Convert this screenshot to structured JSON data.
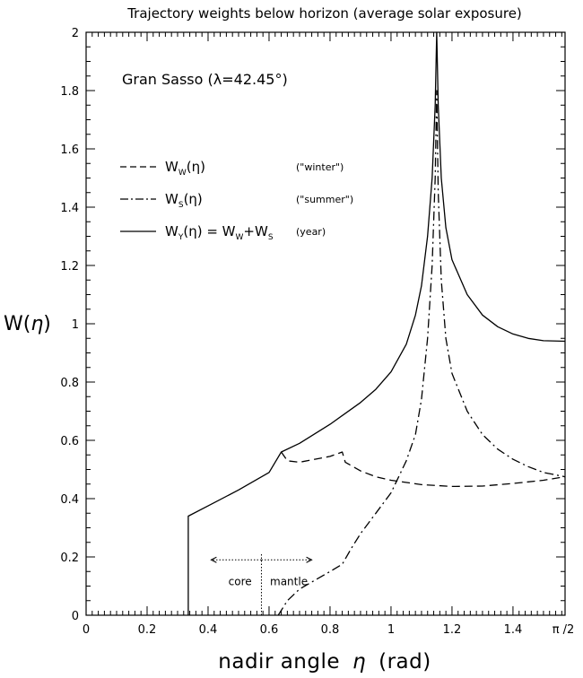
{
  "chart_data": {
    "type": "line",
    "title": "Trajectory weights below horizon (average solar exposure)",
    "xlabel_pre": "nadir angle",
    "xlabel_sym": "η",
    "xlabel_unit": "(rad)",
    "ylabel_pre": "W(",
    "ylabel_sym": "η",
    "ylabel_post": ")",
    "xlim": [
      0,
      1.5708
    ],
    "ylim": [
      0,
      2
    ],
    "grid": false,
    "legend_position": "upper-left",
    "annotation": "Gran Sasso (λ=42.45°)",
    "x_ticks": [
      {
        "value": 0,
        "label": "0"
      },
      {
        "value": 0.2,
        "label": "0.2"
      },
      {
        "value": 0.4,
        "label": "0.4"
      },
      {
        "value": 0.6,
        "label": "0.6"
      },
      {
        "value": 0.8,
        "label": "0.8"
      },
      {
        "value": 1.0,
        "label": "1"
      },
      {
        "value": 1.2,
        "label": "1.2"
      },
      {
        "value": 1.4,
        "label": "1.4"
      },
      {
        "value": 1.5708,
        "label": "π /2"
      }
    ],
    "y_ticks": [
      {
        "value": 0,
        "label": "0"
      },
      {
        "value": 0.2,
        "label": "0.2"
      },
      {
        "value": 0.4,
        "label": "0.4"
      },
      {
        "value": 0.6,
        "label": "0.6"
      },
      {
        "value": 0.8,
        "label": "0.8"
      },
      {
        "value": 1.0,
        "label": "1"
      },
      {
        "value": 1.2,
        "label": "1.2"
      },
      {
        "value": 1.4,
        "label": "1.4"
      },
      {
        "value": 1.6,
        "label": "1.6"
      },
      {
        "value": 1.8,
        "label": "1.8"
      },
      {
        "value": 2.0,
        "label": "2"
      }
    ],
    "core_mantle": {
      "boundary": 0.575,
      "core_label": "core",
      "mantle_label": "mantle"
    },
    "series": [
      {
        "name": "winter",
        "legend_main": "W",
        "legend_sub": "W",
        "legend_arg": "(η)",
        "legend_note": "(\"winter\")",
        "style": "dashed",
        "points": [
          [
            0.64,
            0.56
          ],
          [
            0.66,
            0.53
          ],
          [
            0.7,
            0.525
          ],
          [
            0.75,
            0.535
          ],
          [
            0.8,
            0.545
          ],
          [
            0.84,
            0.56
          ],
          [
            0.85,
            0.525
          ],
          [
            0.9,
            0.495
          ],
          [
            0.95,
            0.475
          ],
          [
            1.0,
            0.463
          ],
          [
            1.1,
            0.448
          ],
          [
            1.2,
            0.442
          ],
          [
            1.3,
            0.443
          ],
          [
            1.4,
            0.452
          ],
          [
            1.5,
            0.463
          ],
          [
            1.5708,
            0.475
          ]
        ]
      },
      {
        "name": "summer",
        "legend_main": "W",
        "legend_sub": "S",
        "legend_arg": "(η)",
        "legend_note": "(\"summer\")",
        "style": "dashdot",
        "points": [
          [
            0.63,
            0.0
          ],
          [
            0.66,
            0.05
          ],
          [
            0.7,
            0.09
          ],
          [
            0.75,
            0.12
          ],
          [
            0.8,
            0.15
          ],
          [
            0.84,
            0.175
          ],
          [
            0.87,
            0.23
          ],
          [
            0.9,
            0.28
          ],
          [
            0.95,
            0.35
          ],
          [
            1.0,
            0.42
          ],
          [
            1.05,
            0.53
          ],
          [
            1.08,
            0.62
          ],
          [
            1.1,
            0.74
          ],
          [
            1.12,
            0.95
          ],
          [
            1.135,
            1.2
          ],
          [
            1.145,
            1.5
          ],
          [
            1.15,
            1.8
          ],
          [
            1.155,
            1.45
          ],
          [
            1.165,
            1.15
          ],
          [
            1.18,
            0.95
          ],
          [
            1.2,
            0.83
          ],
          [
            1.25,
            0.7
          ],
          [
            1.3,
            0.62
          ],
          [
            1.35,
            0.57
          ],
          [
            1.4,
            0.535
          ],
          [
            1.45,
            0.51
          ],
          [
            1.5,
            0.49
          ],
          [
            1.5708,
            0.475
          ]
        ]
      },
      {
        "name": "year",
        "legend_main": "W",
        "legend_sub": "Y",
        "legend_arg": "(η) = W",
        "legend_sub2": "W",
        "legend_mid": "+W",
        "legend_sub3": "S",
        "legend_note": "(year)",
        "style": "solid",
        "points": [
          [
            0.335,
            0.0
          ],
          [
            0.335,
            0.34
          ],
          [
            0.4,
            0.375
          ],
          [
            0.5,
            0.43
          ],
          [
            0.6,
            0.49
          ],
          [
            0.64,
            0.56
          ],
          [
            0.7,
            0.59
          ],
          [
            0.8,
            0.655
          ],
          [
            0.9,
            0.73
          ],
          [
            0.95,
            0.775
          ],
          [
            1.0,
            0.835
          ],
          [
            1.05,
            0.93
          ],
          [
            1.08,
            1.03
          ],
          [
            1.1,
            1.13
          ],
          [
            1.12,
            1.3
          ],
          [
            1.135,
            1.5
          ],
          [
            1.145,
            1.75
          ],
          [
            1.15,
            2.0
          ],
          [
            1.155,
            1.75
          ],
          [
            1.165,
            1.5
          ],
          [
            1.18,
            1.33
          ],
          [
            1.2,
            1.22
          ],
          [
            1.25,
            1.1
          ],
          [
            1.3,
            1.03
          ],
          [
            1.35,
            0.99
          ],
          [
            1.4,
            0.965
          ],
          [
            1.45,
            0.95
          ],
          [
            1.5,
            0.942
          ],
          [
            1.5708,
            0.94
          ]
        ]
      }
    ]
  }
}
